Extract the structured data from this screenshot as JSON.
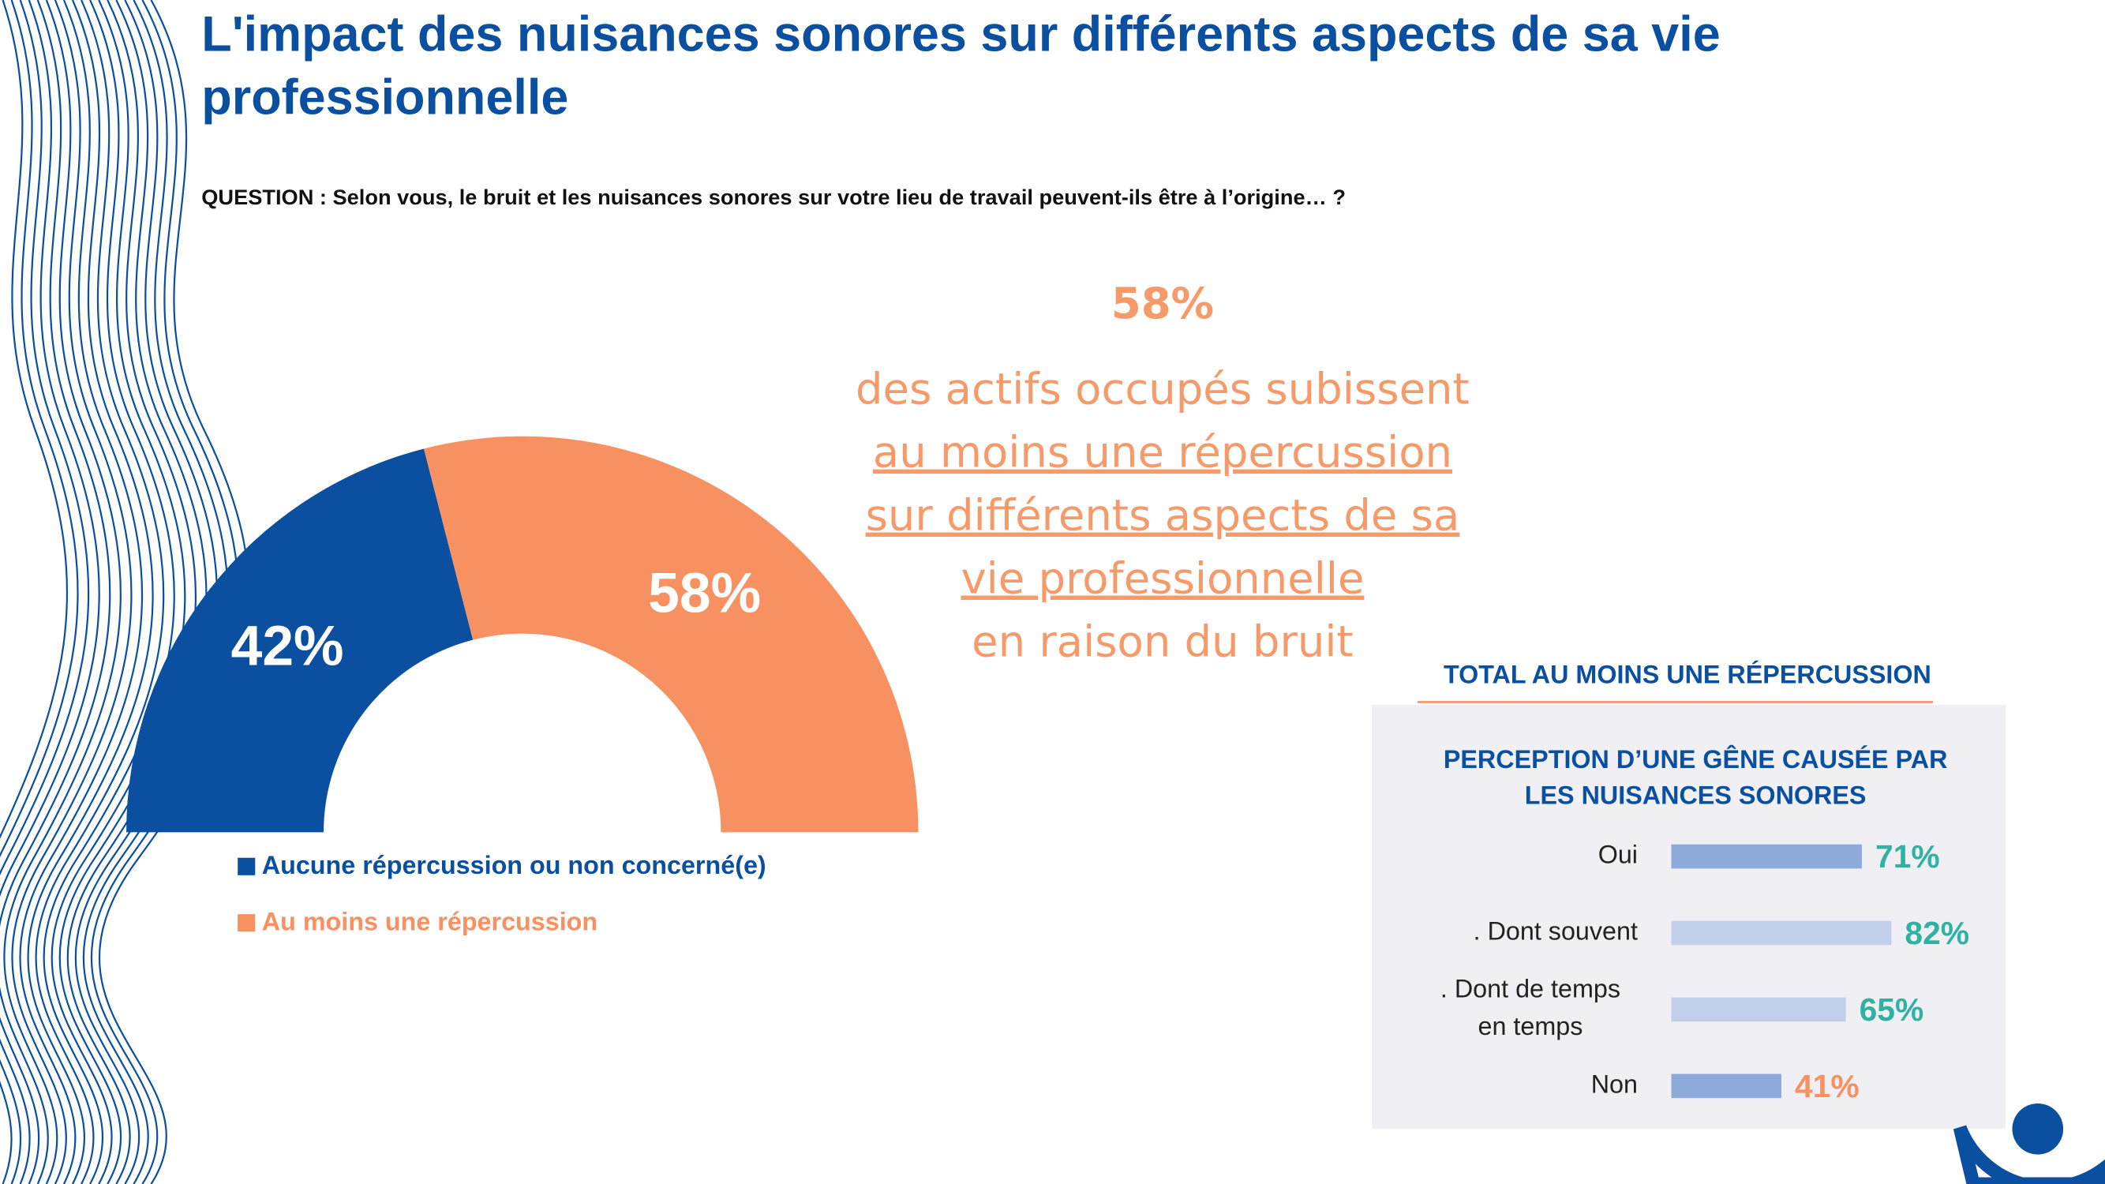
{
  "title": "L'impact des nuisances sonores sur différents aspects de sa vie professionnelle",
  "question": "QUESTION : Selon vous, le bruit et les nuisances sonores sur votre lieu de travail peuvent-ils être à l’origine… ?",
  "callout": [
    "58%",
    "des actifs occupés subissent",
    "au moins une répercussion",
    "sur différents aspects de sa",
    "vie professionnelle",
    "en raison du bruit"
  ],
  "chart_data": [
    {
      "type": "pie",
      "categories": [
        "Aucune répercussion ou non concerné(e)",
        "Au moins une répercussion"
      ],
      "values": [
        42,
        58
      ],
      "value_labels": [
        "42%",
        "58%"
      ],
      "colors": [
        "#0a4fa0",
        "#f79162"
      ]
    },
    {
      "type": "bar",
      "header": "TOTAL AU MOINS UNE RÉPERCUSSION",
      "title": "PERCEPTION D’UNE GÊNE CAUSÉE PAR LES NUISANCES SONORES",
      "categories": [
        "Oui",
        ". Dont souvent",
        ". Dont de temps en temps",
        "Non"
      ],
      "values": [
        71,
        82,
        65,
        41
      ],
      "value_labels": [
        "71%",
        "82%",
        "65%",
        "41%"
      ],
      "colors": [
        "#8eaadb",
        "#c2cfea",
        "#c2cfea",
        "#8eaadb"
      ],
      "label_colors": [
        "#2fb2a2",
        "#2fb2a2",
        "#2fb2a2",
        "#f79162"
      ]
    }
  ]
}
